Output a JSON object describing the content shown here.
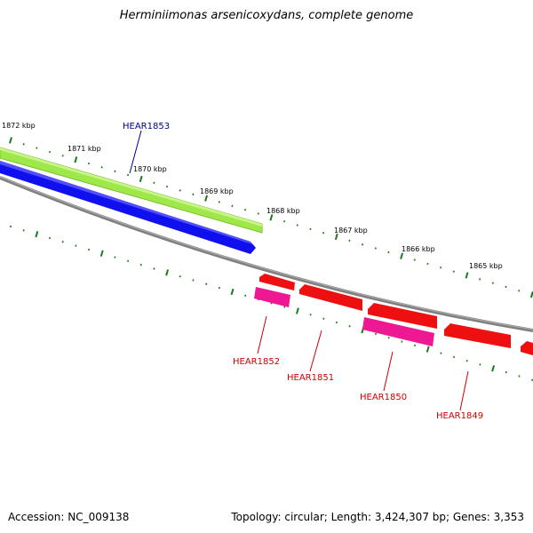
{
  "title": "Herminiimonas arsenicoxydans, complete genome",
  "footer": {
    "accession": "Accession: NC_009138",
    "summary": "Topology: circular; Length: 3,424,307 bp; Genes: 3,353"
  },
  "colors": {
    "forward_gene_light": "#9ee84a",
    "forward_cds": "#1010ee",
    "reverse_cds": "#ee1010",
    "reverse_gene_pink": "#ee1893",
    "backbone": "#808080",
    "tick": "#1a7a1a",
    "forward_label": "#00008b",
    "reverse_label": "#cc0000"
  },
  "scale": {
    "ticks": [
      "1872 kbp",
      "1871 kbp",
      "1870 kbp",
      "1869 kbp",
      "1868 kbp",
      "1867 kbp",
      "1866 kbp",
      "1865 kbp"
    ]
  },
  "genes": [
    {
      "name": "HEAR1853",
      "strand": "forward"
    },
    {
      "name": "HEAR1852",
      "strand": "reverse"
    },
    {
      "name": "HEAR1851",
      "strand": "reverse"
    },
    {
      "name": "HEAR1850",
      "strand": "reverse"
    },
    {
      "name": "HEAR1849",
      "strand": "reverse"
    }
  ]
}
